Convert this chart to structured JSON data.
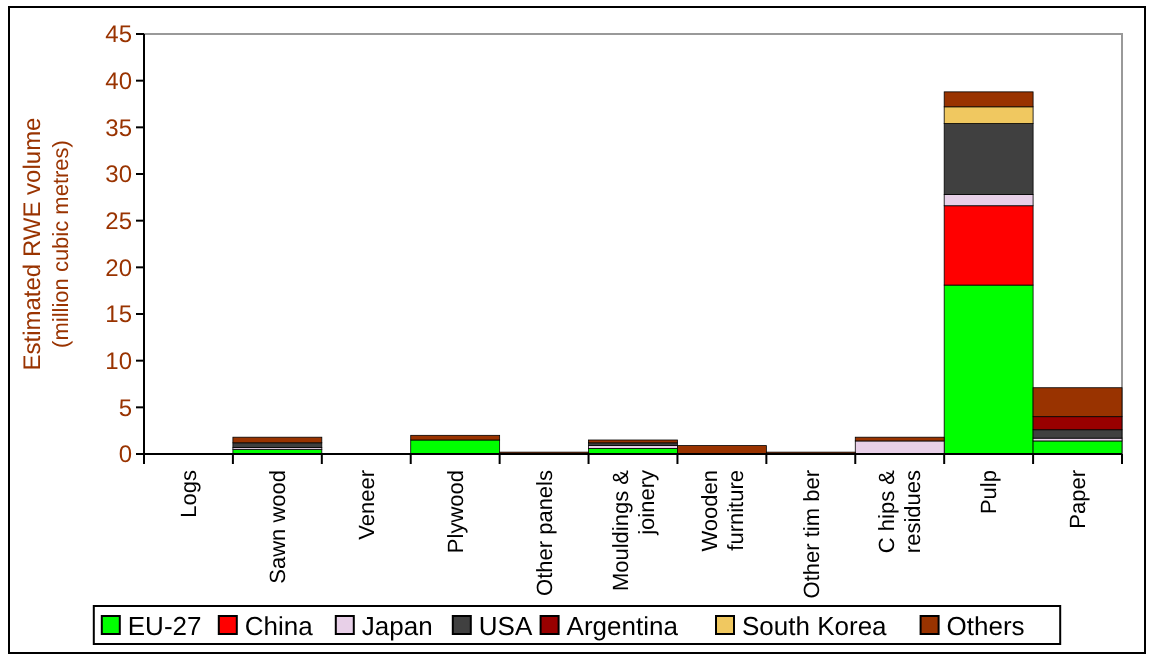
{
  "chart_data": {
    "type": "bar",
    "stacked": true,
    "ylabel": "Estimated RWE volume\n(million cubic metres)",
    "categories": [
      "Logs",
      "Sawn wood",
      "Veneer",
      "Plywood",
      "Other panels",
      "Mouldings &\njoinery",
      "Wooden\nfurniture",
      "Other tim ber",
      "C hips &\nresidues",
      "Pulp",
      "Paper"
    ],
    "ylim": [
      0,
      45
    ],
    "yticks": [
      0,
      5,
      10,
      15,
      20,
      25,
      30,
      35,
      40,
      45
    ],
    "grid": false,
    "legend": "bottom",
    "series": [
      {
        "name": "EU-27",
        "color": "#00ff00",
        "values": [
          0,
          0.5,
          0,
          1.5,
          0,
          0.6,
          0,
          0,
          0,
          18.1,
          1.4
        ]
      },
      {
        "name": "China",
        "color": "#ff0000",
        "values": [
          0,
          0,
          0,
          0,
          0,
          0,
          0,
          0,
          0,
          8.5,
          0
        ]
      },
      {
        "name": "Japan",
        "color": "#e8d0e8",
        "values": [
          0,
          0.2,
          0,
          0,
          0,
          0.3,
          0,
          0,
          1.4,
          1.2,
          0.3
        ]
      },
      {
        "name": "USA",
        "color": "#404040",
        "values": [
          0,
          0.5,
          0,
          0,
          0,
          0.3,
          0,
          0,
          0,
          7.6,
          0.9
        ]
      },
      {
        "name": "Argentina",
        "color": "#990000",
        "values": [
          0,
          0,
          0,
          0,
          0,
          0,
          0,
          0,
          0,
          0,
          1.4
        ]
      },
      {
        "name": "South Korea",
        "color": "#f0c860",
        "values": [
          0,
          0,
          0,
          0,
          0,
          0,
          0,
          0,
          0,
          1.8,
          0
        ]
      },
      {
        "name": "Others",
        "color": "#993300",
        "values": [
          0,
          0.6,
          0,
          0.5,
          0.2,
          0.3,
          0.9,
          0.2,
          0.4,
          1.6,
          3.1
        ]
      }
    ]
  }
}
